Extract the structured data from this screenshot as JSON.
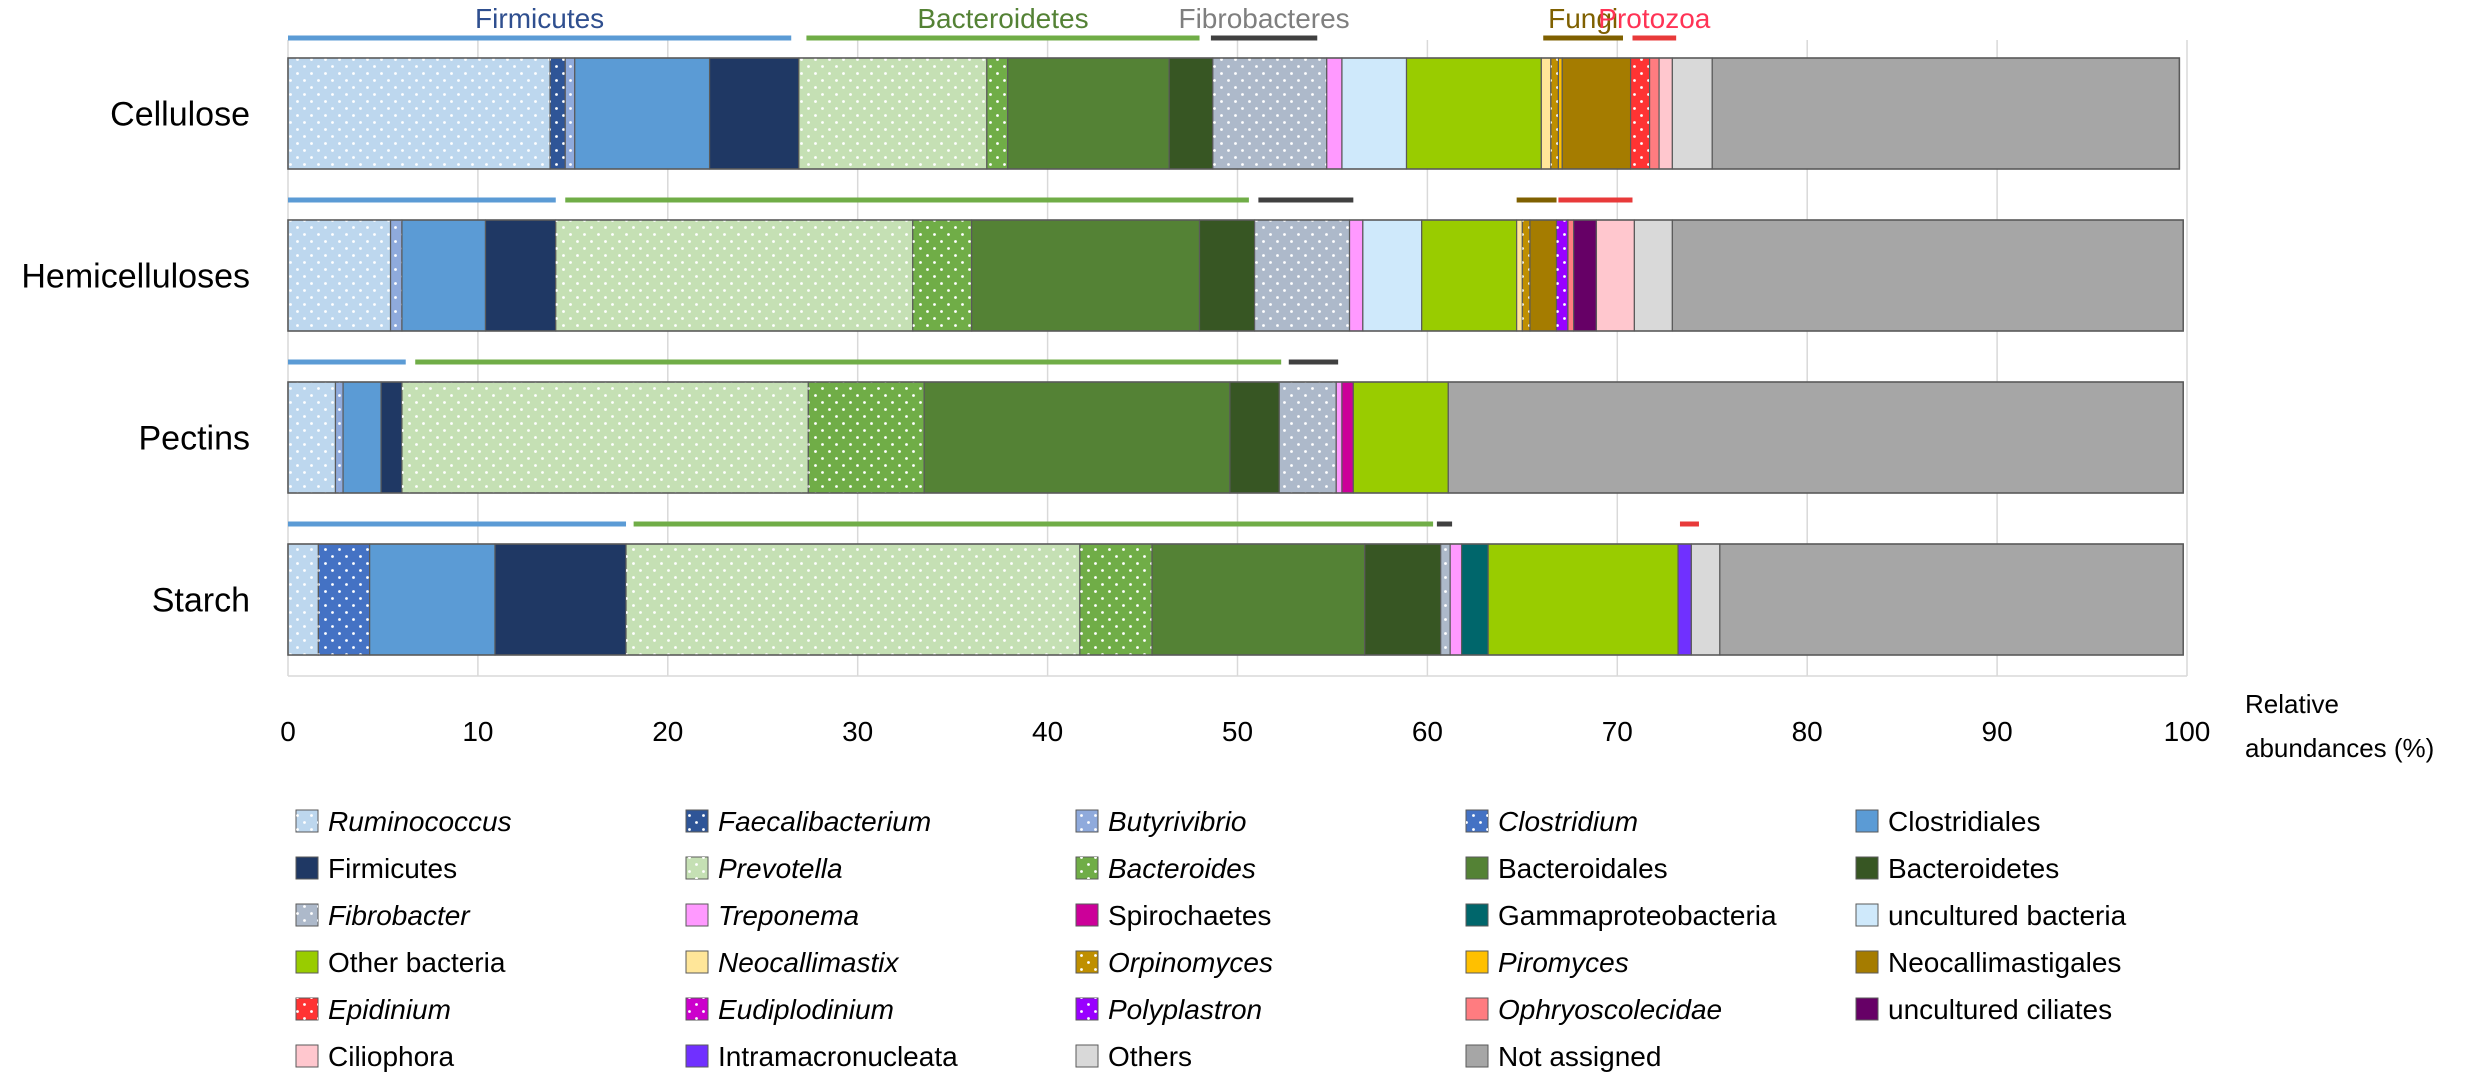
{
  "chart_data": {
    "type": "stacked-bar-horizontal",
    "title": "",
    "xlabel": "Relative abundances (%)",
    "xlabel_lines": [
      "Relative",
      "abundances (%)"
    ],
    "ylabel": "",
    "xlim": [
      0,
      100
    ],
    "x_ticks": [
      0,
      10,
      20,
      30,
      40,
      50,
      60,
      70,
      80,
      90,
      100
    ],
    "grid": true,
    "legend_position": "bottom",
    "categories": [
      "Cellulose",
      "Hemicelluloses",
      "Pectins",
      "Starch"
    ],
    "series": [
      {
        "name": "Ruminococcus",
        "italic": true,
        "color": "#bdd7ee",
        "dotted": true,
        "values": [
          13.8,
          5.4,
          2.5,
          1.6
        ]
      },
      {
        "name": "Faecalibacterium",
        "italic": true,
        "color": "#2f5597",
        "dotted": true,
        "values": [
          0.8,
          0.0,
          0.0,
          0.0
        ]
      },
      {
        "name": "Butyrivibrio",
        "italic": true,
        "color": "#8faadc",
        "dotted": true,
        "values": [
          0.5,
          0.6,
          0.4,
          0.0
        ]
      },
      {
        "name": "Clostridium",
        "italic": true,
        "color": "#4472c4",
        "dotted": true,
        "values": [
          0.0,
          0.0,
          0.0,
          2.7
        ]
      },
      {
        "name": "Clostridiales",
        "italic": false,
        "color": "#5b9bd5",
        "dotted": false,
        "values": [
          7.1,
          4.4,
          2.0,
          6.6
        ]
      },
      {
        "name": "Firmicutes",
        "italic": false,
        "color": "#1f3864",
        "dotted": false,
        "values": [
          4.7,
          3.7,
          1.1,
          6.9
        ]
      },
      {
        "name": "Prevotella",
        "italic": true,
        "color": "#c5e0b4",
        "dotted": true,
        "values": [
          9.9,
          18.8,
          21.4,
          23.9
        ]
      },
      {
        "name": "Bacteroides",
        "italic": true,
        "color": "#70ad47",
        "dotted": true,
        "values": [
          1.1,
          3.1,
          6.1,
          3.8
        ]
      },
      {
        "name": "Bacteroidales",
        "italic": false,
        "color": "#548235",
        "dotted": false,
        "values": [
          8.5,
          12.0,
          16.1,
          11.2
        ]
      },
      {
        "name": "Bacteroidetes",
        "italic": false,
        "color": "#375623",
        "dotted": false,
        "values": [
          2.3,
          2.9,
          2.6,
          4.0
        ]
      },
      {
        "name": "Fibrobacter",
        "italic": true,
        "color": "#adb9ca",
        "dotted": true,
        "values": [
          6.0,
          5.0,
          3.0,
          0.5
        ]
      },
      {
        "name": "Treponema",
        "italic": true,
        "color": "#ff99ff",
        "dotted": false,
        "values": [
          0.8,
          0.7,
          0.3,
          0.6
        ]
      },
      {
        "name": "Spirochaetes",
        "italic": false,
        "color": "#cc0099",
        "dotted": false,
        "values": [
          0.0,
          0.0,
          0.6,
          0.0
        ]
      },
      {
        "name": "Gammaproteobacteria",
        "italic": false,
        "color": "#00666b",
        "dotted": false,
        "values": [
          0.0,
          0.0,
          0.0,
          1.4
        ]
      },
      {
        "name": "uncultured bacteria",
        "italic": false,
        "color": "#cfe9fb",
        "dotted": false,
        "values": [
          3.4,
          3.1,
          0.0,
          0.0
        ]
      },
      {
        "name": "Other bacteria",
        "italic": false,
        "color": "#99cc00",
        "dotted": false,
        "values": [
          7.1,
          5.0,
          5.0,
          10.0
        ]
      },
      {
        "name": "Neocallimastix",
        "italic": true,
        "color": "#ffe699",
        "dotted": false,
        "values": [
          0.5,
          0.3,
          0.0,
          0.0
        ]
      },
      {
        "name": "Orpinomyces",
        "italic": true,
        "color": "#bf8f00",
        "dotted": true,
        "values": [
          0.4,
          0.4,
          0.0,
          0.0
        ]
      },
      {
        "name": "Piromyces",
        "italic": true,
        "color": "#ffc000",
        "dotted": false,
        "values": [
          0.2,
          0.0,
          0.0,
          0.0
        ]
      },
      {
        "name": "Neocallimastigales",
        "italic": false,
        "color": "#a57c00",
        "dotted": false,
        "values": [
          3.6,
          1.4,
          0.0,
          0.0
        ]
      },
      {
        "name": "Epidinium",
        "italic": true,
        "color": "#ff3333",
        "dotted": true,
        "values": [
          1.0,
          0.0,
          0.0,
          0.0
        ]
      },
      {
        "name": "Eudiplodinium",
        "italic": true,
        "color": "#cc00cc",
        "dotted": true,
        "values": [
          0.0,
          0.0,
          0.0,
          0.0
        ]
      },
      {
        "name": "Polyplastron",
        "italic": true,
        "color": "#9900ff",
        "dotted": true,
        "values": [
          0.0,
          0.6,
          0.0,
          0.0
        ]
      },
      {
        "name": "Ophryoscolecidae",
        "italic": true,
        "color": "#ff7c80",
        "dotted": false,
        "values": [
          0.5,
          0.3,
          0.0,
          0.0
        ]
      },
      {
        "name": "uncultured ciliates",
        "italic": false,
        "color": "#660066",
        "dotted": false,
        "values": [
          0.0,
          1.2,
          0.0,
          0.0
        ]
      },
      {
        "name": "Ciliophora",
        "italic": false,
        "color": "#ffc7ce",
        "dotted": false,
        "values": [
          0.7,
          2.0,
          0.0,
          0.0
        ]
      },
      {
        "name": "Intramacronucleata",
        "italic": false,
        "color": "#7030ff",
        "dotted": false,
        "values": [
          0.0,
          0.0,
          0.0,
          0.7
        ]
      },
      {
        "name": "Others",
        "italic": false,
        "color": "#d9d9d9",
        "dotted": false,
        "values": [
          2.1,
          2.0,
          0.0,
          1.5
        ]
      },
      {
        "name": "Not assigned",
        "italic": false,
        "color": "#a6a6a6",
        "dotted": false,
        "values": [
          24.6,
          26.9,
          38.7,
          24.4
        ]
      }
    ],
    "group_brackets": [
      {
        "category": "Cellulose",
        "brackets": [
          {
            "group": "Firmicutes",
            "label": "Firmicutes",
            "label_color": "#2f4f8f",
            "color": "#5b9bd5",
            "start": 0.0,
            "end": 26.5
          },
          {
            "group": "Bacteroidetes",
            "label": "Bacteroidetes",
            "label_color": "#548235",
            "color": "#70ad47",
            "start": 27.3,
            "end": 48.0
          },
          {
            "group": "Fibrobacteres",
            "label": "Fibrobacteres",
            "label_color": "#7f7f7f",
            "color": "#404040",
            "start": 48.6,
            "end": 54.2
          },
          {
            "group": "Fungi",
            "label": "Fungi",
            "label_color": "#7f6000",
            "color": "#7f6000",
            "start": 66.1,
            "end": 70.3
          },
          {
            "group": "Protozoa",
            "label": "Protozoa",
            "label_color": "#ff3355",
            "color": "#e83a3a",
            "start": 70.8,
            "end": 73.1
          }
        ]
      },
      {
        "category": "Hemicelluloses",
        "brackets": [
          {
            "group": "Firmicutes",
            "color": "#5b9bd5",
            "start": 0.0,
            "end": 14.1
          },
          {
            "group": "Bacteroidetes",
            "color": "#70ad47",
            "start": 14.6,
            "end": 50.6
          },
          {
            "group": "Fibrobacteres",
            "color": "#404040",
            "start": 51.1,
            "end": 56.1
          },
          {
            "group": "Fungi",
            "color": "#7f6000",
            "start": 64.7,
            "end": 66.8
          },
          {
            "group": "Protozoa",
            "color": "#e83a3a",
            "start": 66.9,
            "end": 70.8
          }
        ]
      },
      {
        "category": "Pectins",
        "brackets": [
          {
            "group": "Firmicutes",
            "color": "#5b9bd5",
            "start": 0.0,
            "end": 6.2
          },
          {
            "group": "Bacteroidetes",
            "color": "#70ad47",
            "start": 6.7,
            "end": 52.3
          },
          {
            "group": "Fibrobacteres",
            "color": "#404040",
            "start": 52.7,
            "end": 55.3
          }
        ]
      },
      {
        "category": "Starch",
        "brackets": [
          {
            "group": "Firmicutes",
            "color": "#5b9bd5",
            "start": 0.0,
            "end": 17.8
          },
          {
            "group": "Bacteroidetes",
            "color": "#70ad47",
            "start": 18.2,
            "end": 60.3
          },
          {
            "group": "Fibrobacteres",
            "color": "#404040",
            "start": 60.5,
            "end": 61.3
          },
          {
            "group": "Protozoa",
            "color": "#e83a3a",
            "start": 73.3,
            "end": 74.3
          }
        ]
      }
    ]
  }
}
